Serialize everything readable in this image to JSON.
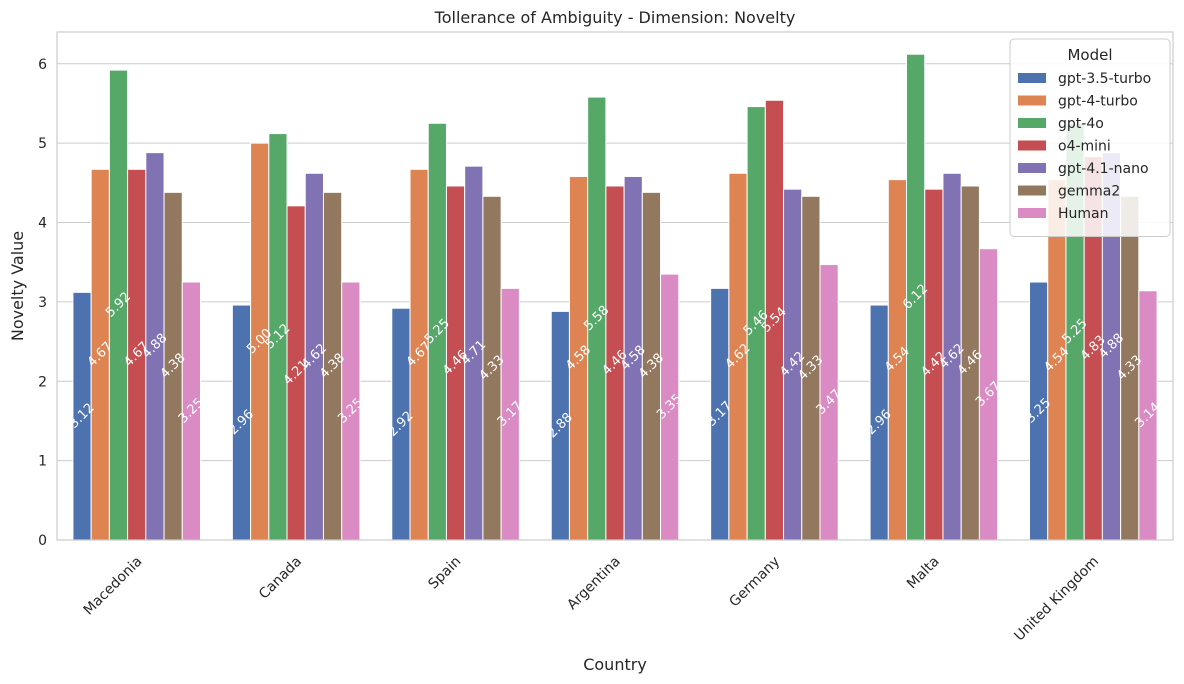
{
  "chart_data": {
    "type": "bar",
    "title": "Tollerance of Ambiguity - Dimension: Novelty",
    "xlabel": "Country",
    "ylabel": "Novelty Value",
    "ylim": [
      0,
      6.4
    ],
    "yticks": [
      0,
      1,
      2,
      3,
      4,
      5,
      6
    ],
    "grid": true,
    "legend_title": "Model",
    "legend_position": "top-right",
    "categories": [
      "Macedonia",
      "Canada",
      "Spain",
      "Argentina",
      "Germany",
      "Malta",
      "United Kingdom"
    ],
    "series": [
      {
        "name": "gpt-3.5-turbo",
        "color": "#4c72b0",
        "values": [
          3.12,
          2.96,
          2.92,
          2.88,
          3.17,
          2.96,
          3.25
        ]
      },
      {
        "name": "gpt-4-turbo",
        "color": "#dd8452",
        "values": [
          4.67,
          5.0,
          4.67,
          4.58,
          4.62,
          4.54,
          4.54
        ]
      },
      {
        "name": "gpt-4o",
        "color": "#55a868",
        "values": [
          5.92,
          5.12,
          5.25,
          5.58,
          5.46,
          6.12,
          5.25
        ]
      },
      {
        "name": "o4-mini",
        "color": "#c44e52",
        "values": [
          4.67,
          4.21,
          4.46,
          4.46,
          5.54,
          4.42,
          4.83
        ]
      },
      {
        "name": "gpt-4.1-nano",
        "color": "#8172b3",
        "values": [
          4.88,
          4.62,
          4.71,
          4.58,
          4.42,
          4.62,
          4.88
        ]
      },
      {
        "name": "gemma2",
        "color": "#937860",
        "values": [
          4.38,
          4.38,
          4.33,
          4.38,
          4.33,
          4.46,
          4.33
        ]
      },
      {
        "name": "Human",
        "color": "#da8bc3",
        "values": [
          3.25,
          3.25,
          3.17,
          3.35,
          3.47,
          3.67,
          3.14
        ]
      }
    ]
  }
}
